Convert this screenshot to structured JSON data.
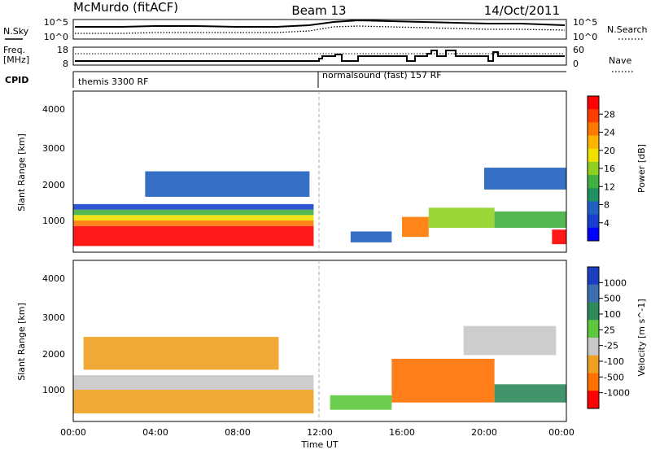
{
  "header": {
    "station": "McMurdo (fitACF)",
    "beam": "Beam 13",
    "date": "14/Oct/2011"
  },
  "top_panels": {
    "nsky_label": "N.Sky",
    "nsky_ticks": [
      "10^5",
      "10^0"
    ],
    "nsearch_label": "N.Search",
    "nsearch_ticks": [
      "10^5",
      "10^0"
    ],
    "freq_label_line1": "Freq.",
    "freq_label_line2": "[MHz]",
    "freq_ticks": [
      "18",
      "8"
    ],
    "nave_label": "Nave",
    "nave_ticks": [
      "60",
      "0"
    ],
    "cpid_label": "CPID",
    "cpid_segments": [
      {
        "label": "themis 3300 RF",
        "start_hour": 0
      },
      {
        "label": "normalsound (fast) 157 RF",
        "start_hour": 12
      }
    ]
  },
  "axes": {
    "x_ticks": [
      "00:00",
      "04:00",
      "08:00",
      "12:00",
      "16:00",
      "20:00",
      "00:00"
    ],
    "x_label": "Time UT",
    "y_ticks": [
      "4000",
      "3000",
      "2000",
      "1000"
    ],
    "y_label": "Slant Range [km]"
  },
  "chart_data": [
    {
      "type": "heatmap",
      "title": "",
      "xlabel": "Time UT",
      "ylabel": "Slant Range [km]",
      "xlim": [
        0,
        24
      ],
      "ylim": [
        180,
        4600
      ],
      "colorbar": {
        "label": "Power [dB]",
        "ticks": [
          "28",
          "24",
          "20",
          "16",
          "12",
          "8",
          "4"
        ],
        "colors": [
          "#ff0000",
          "#ff3c00",
          "#ff7800",
          "#ffb400",
          "#f0e000",
          "#90d020",
          "#40b040",
          "#209060",
          "#2060c0",
          "#1840d0",
          "#0000ff"
        ]
      },
      "regions": [
        {
          "t0": 0.0,
          "t1": 11.7,
          "r0": 350,
          "r1": 900,
          "color": "#ff0000"
        },
        {
          "t0": 0.0,
          "t1": 11.7,
          "r0": 900,
          "r1": 1050,
          "color": "#ff7800"
        },
        {
          "t0": 0.0,
          "t1": 11.7,
          "r0": 1050,
          "r1": 1200,
          "color": "#f0e000"
        },
        {
          "t0": 0.0,
          "t1": 11.7,
          "r0": 1200,
          "r1": 1350,
          "color": "#40b040"
        },
        {
          "t0": 0.0,
          "t1": 11.7,
          "r0": 1350,
          "r1": 1500,
          "color": "#1840d0"
        },
        {
          "t0": 13.5,
          "t1": 15.5,
          "r0": 450,
          "r1": 750,
          "color": "#2060c0"
        },
        {
          "t0": 16.0,
          "t1": 17.3,
          "r0": 600,
          "r1": 1150,
          "color": "#ff7800"
        },
        {
          "t0": 17.3,
          "t1": 20.5,
          "r0": 850,
          "r1": 1400,
          "color": "#90d020"
        },
        {
          "t0": 20.5,
          "t1": 24.0,
          "r0": 850,
          "r1": 1300,
          "color": "#40b040"
        },
        {
          "t0": 23.3,
          "t1": 24.0,
          "r0": 400,
          "r1": 800,
          "color": "#ff0000"
        },
        {
          "t0": 20.0,
          "t1": 24.0,
          "r0": 1900,
          "r1": 2500,
          "color": "#2060c0"
        },
        {
          "t0": 3.5,
          "t1": 11.5,
          "r0": 1700,
          "r1": 2400,
          "color": "#2060c0"
        }
      ]
    },
    {
      "type": "heatmap",
      "title": "",
      "xlabel": "Time UT",
      "ylabel": "Slant Range [km]",
      "xlim": [
        0,
        24
      ],
      "ylim": [
        180,
        4600
      ],
      "colorbar": {
        "label": "Velocity [m s^-1]",
        "ticks": [
          "1000",
          "500",
          "100",
          "25",
          "-25",
          "-100",
          "-500",
          "-1000"
        ],
        "colors": [
          "#1a3fc0",
          "#3c6fb0",
          "#2e8a5a",
          "#5cc83c",
          "#c8c8c8",
          "#f0a020",
          "#ff7000",
          "#ff0000"
        ]
      },
      "regions": [
        {
          "t0": 0.0,
          "t1": 11.7,
          "r0": 400,
          "r1": 1050,
          "color": "#f0a020"
        },
        {
          "t0": 0.0,
          "t1": 11.7,
          "r0": 1050,
          "r1": 1450,
          "color": "#c8c8c8"
        },
        {
          "t0": 0.5,
          "t1": 10.0,
          "r0": 1600,
          "r1": 2500,
          "color": "#f0a020"
        },
        {
          "t0": 15.5,
          "t1": 20.5,
          "r0": 700,
          "r1": 1900,
          "color": "#ff7000"
        },
        {
          "t0": 20.5,
          "t1": 24.0,
          "r0": 700,
          "r1": 1200,
          "color": "#2e8a5a"
        },
        {
          "t0": 19.0,
          "t1": 23.5,
          "r0": 2000,
          "r1": 2800,
          "color": "#c8c8c8"
        },
        {
          "t0": 12.5,
          "t1": 15.5,
          "r0": 500,
          "r1": 900,
          "color": "#5cc83c"
        }
      ]
    }
  ]
}
